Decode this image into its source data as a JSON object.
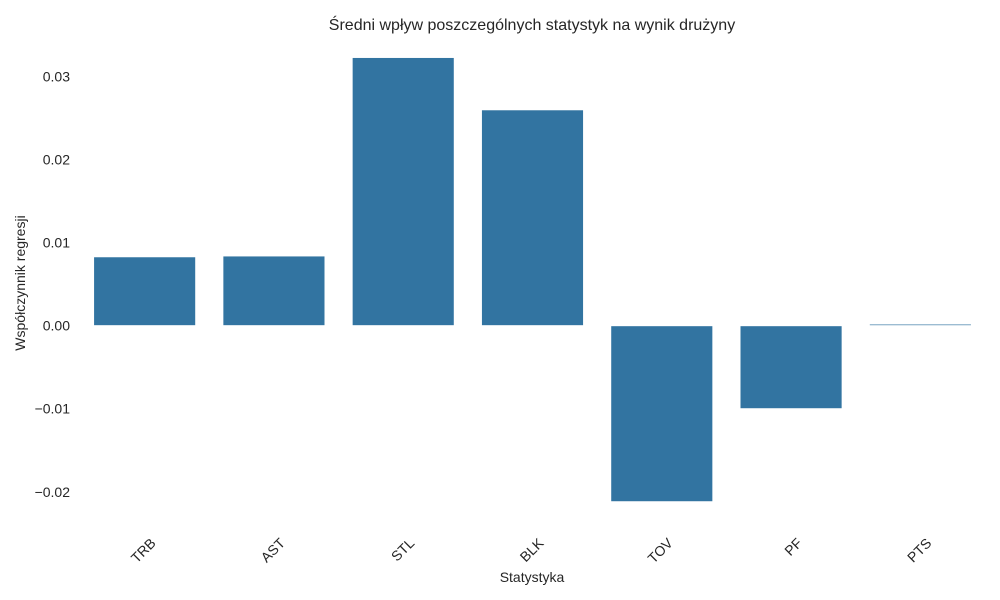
{
  "chart_data": {
    "type": "bar",
    "title": "Średni wpływ poszczególnych statystyk na wynik drużyny",
    "xlabel": "Statystyka",
    "ylabel": "Współczynnik regresji",
    "categories": [
      "TRB",
      "AST",
      "STL",
      "BLK",
      "TOV",
      "PF",
      "PTS"
    ],
    "values": [
      0.0083,
      0.0084,
      0.0323,
      0.026,
      -0.0212,
      -0.01,
      0.0002
    ],
    "yticks": [
      -0.02,
      -0.01,
      0.0,
      0.01,
      0.02,
      0.03
    ],
    "ytick_labels": [
      "−0.02",
      "−0.01",
      "0.00",
      "0.01",
      "0.02",
      "0.03"
    ],
    "ylim": [
      -0.0234,
      0.0338
    ],
    "grid": false,
    "bar_color": "#3274a1"
  }
}
